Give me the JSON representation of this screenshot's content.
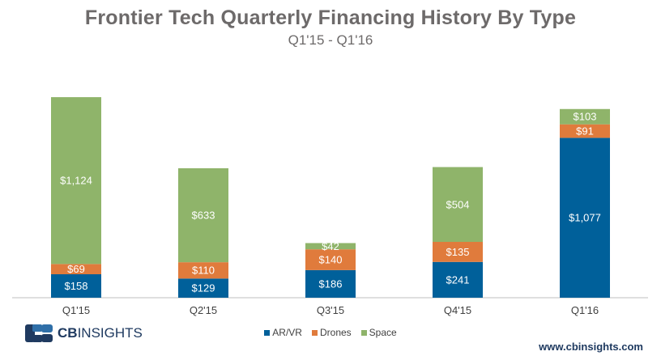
{
  "chart_data": {
    "type": "bar",
    "stacked": true,
    "title": "Frontier Tech Quarterly Financing History By Type",
    "subtitle": "Q1'15 - Q1'16",
    "categories": [
      "Q1'15",
      "Q2'15",
      "Q3'15",
      "Q4'15",
      "Q1'16"
    ],
    "series": [
      {
        "name": "AR/VR",
        "color": "#00609a",
        "values": [
          158,
          129,
          186,
          241,
          1077
        ],
        "labels": [
          "$158",
          "$129",
          "$186",
          "$241",
          "$1,077"
        ]
      },
      {
        "name": "Drones",
        "color": "#e07b3c",
        "values": [
          69,
          110,
          140,
          135,
          91
        ],
        "labels": [
          "$69",
          "$110",
          "$140",
          "$135",
          "$91"
        ]
      },
      {
        "name": "Space",
        "color": "#8fb46a",
        "values": [
          1124,
          633,
          42,
          504,
          103
        ],
        "labels": [
          "$1,124",
          "$633",
          "$42",
          "$504",
          "$103"
        ]
      }
    ],
    "xlabel": "",
    "ylabel": "",
    "ylim": [
      0,
      1400
    ],
    "grid": false,
    "legend_position": "bottom"
  },
  "branding": {
    "logo_prefix": "CB",
    "logo_suffix": "INSIGHTS",
    "url": "www.cbinsights.com"
  },
  "colors": {
    "title": "#6d6a6a",
    "brand": "#1f3a60"
  }
}
